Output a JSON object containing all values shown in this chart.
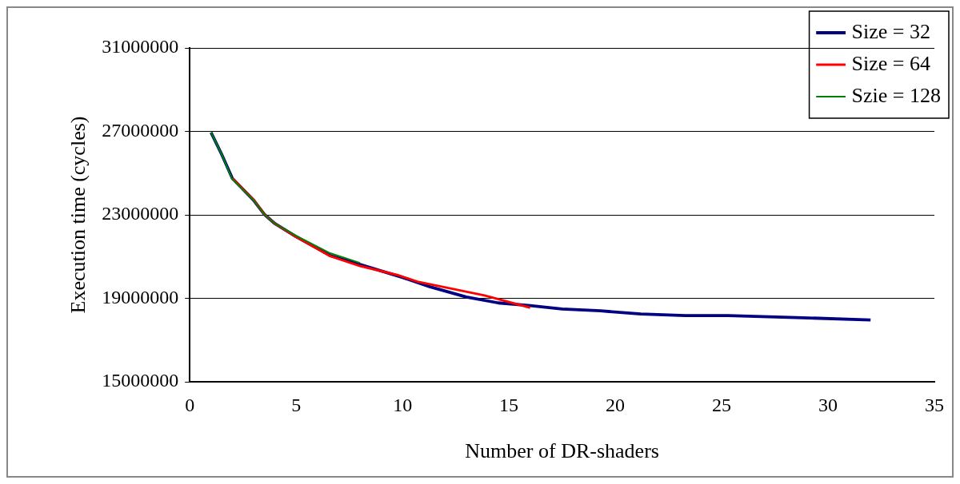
{
  "chart_data": {
    "type": "line",
    "xlabel": "Number of DR-shaders",
    "ylabel": "Execution time (cycles)",
    "xlim": [
      0,
      35
    ],
    "xticks": [
      0,
      5,
      10,
      15,
      20,
      25,
      30,
      35
    ],
    "ylim": [
      15000000,
      31000000
    ],
    "yticks": [
      15000000,
      19000000,
      23000000,
      27000000,
      31000000
    ],
    "grid": "y",
    "legend": "top right",
    "marker": "none",
    "line_style": "solid",
    "series": [
      {
        "name": "Size = 32",
        "color": "#000080",
        "x": [
          1,
          1.5,
          2,
          3,
          3.5,
          4,
          5,
          6.6,
          8,
          10,
          11.3,
          13,
          14.5,
          16,
          17.5,
          19.3,
          21.2,
          23.3,
          25.3,
          28.5,
          32
        ],
        "values": [
          26950000,
          25900000,
          24750000,
          23700000,
          23030000,
          22580000,
          21950000,
          21050000,
          20620000,
          20000000,
          19550000,
          19060000,
          18780000,
          18650000,
          18490000,
          18400000,
          18250000,
          18170000,
          18170000,
          18080000,
          17960000
        ]
      },
      {
        "name": "Size = 64",
        "color": "#ff0000",
        "x": [
          2,
          3,
          3.5,
          4,
          5,
          6.6,
          8,
          9.75,
          10.7,
          13.85,
          16
        ],
        "values": [
          24750000,
          23730000,
          23030000,
          22580000,
          21950000,
          21020000,
          20550000,
          20120000,
          19800000,
          19140000,
          18550000
        ]
      },
      {
        "name": "Szie = 128",
        "color": "#008000",
        "x": [
          1,
          1.5,
          2,
          3,
          3.5,
          4,
          5,
          6.6,
          8
        ],
        "values": [
          26950000,
          25900000,
          24700000,
          23700000,
          23030000,
          22580000,
          22000000,
          21160000,
          20700000
        ]
      }
    ]
  }
}
